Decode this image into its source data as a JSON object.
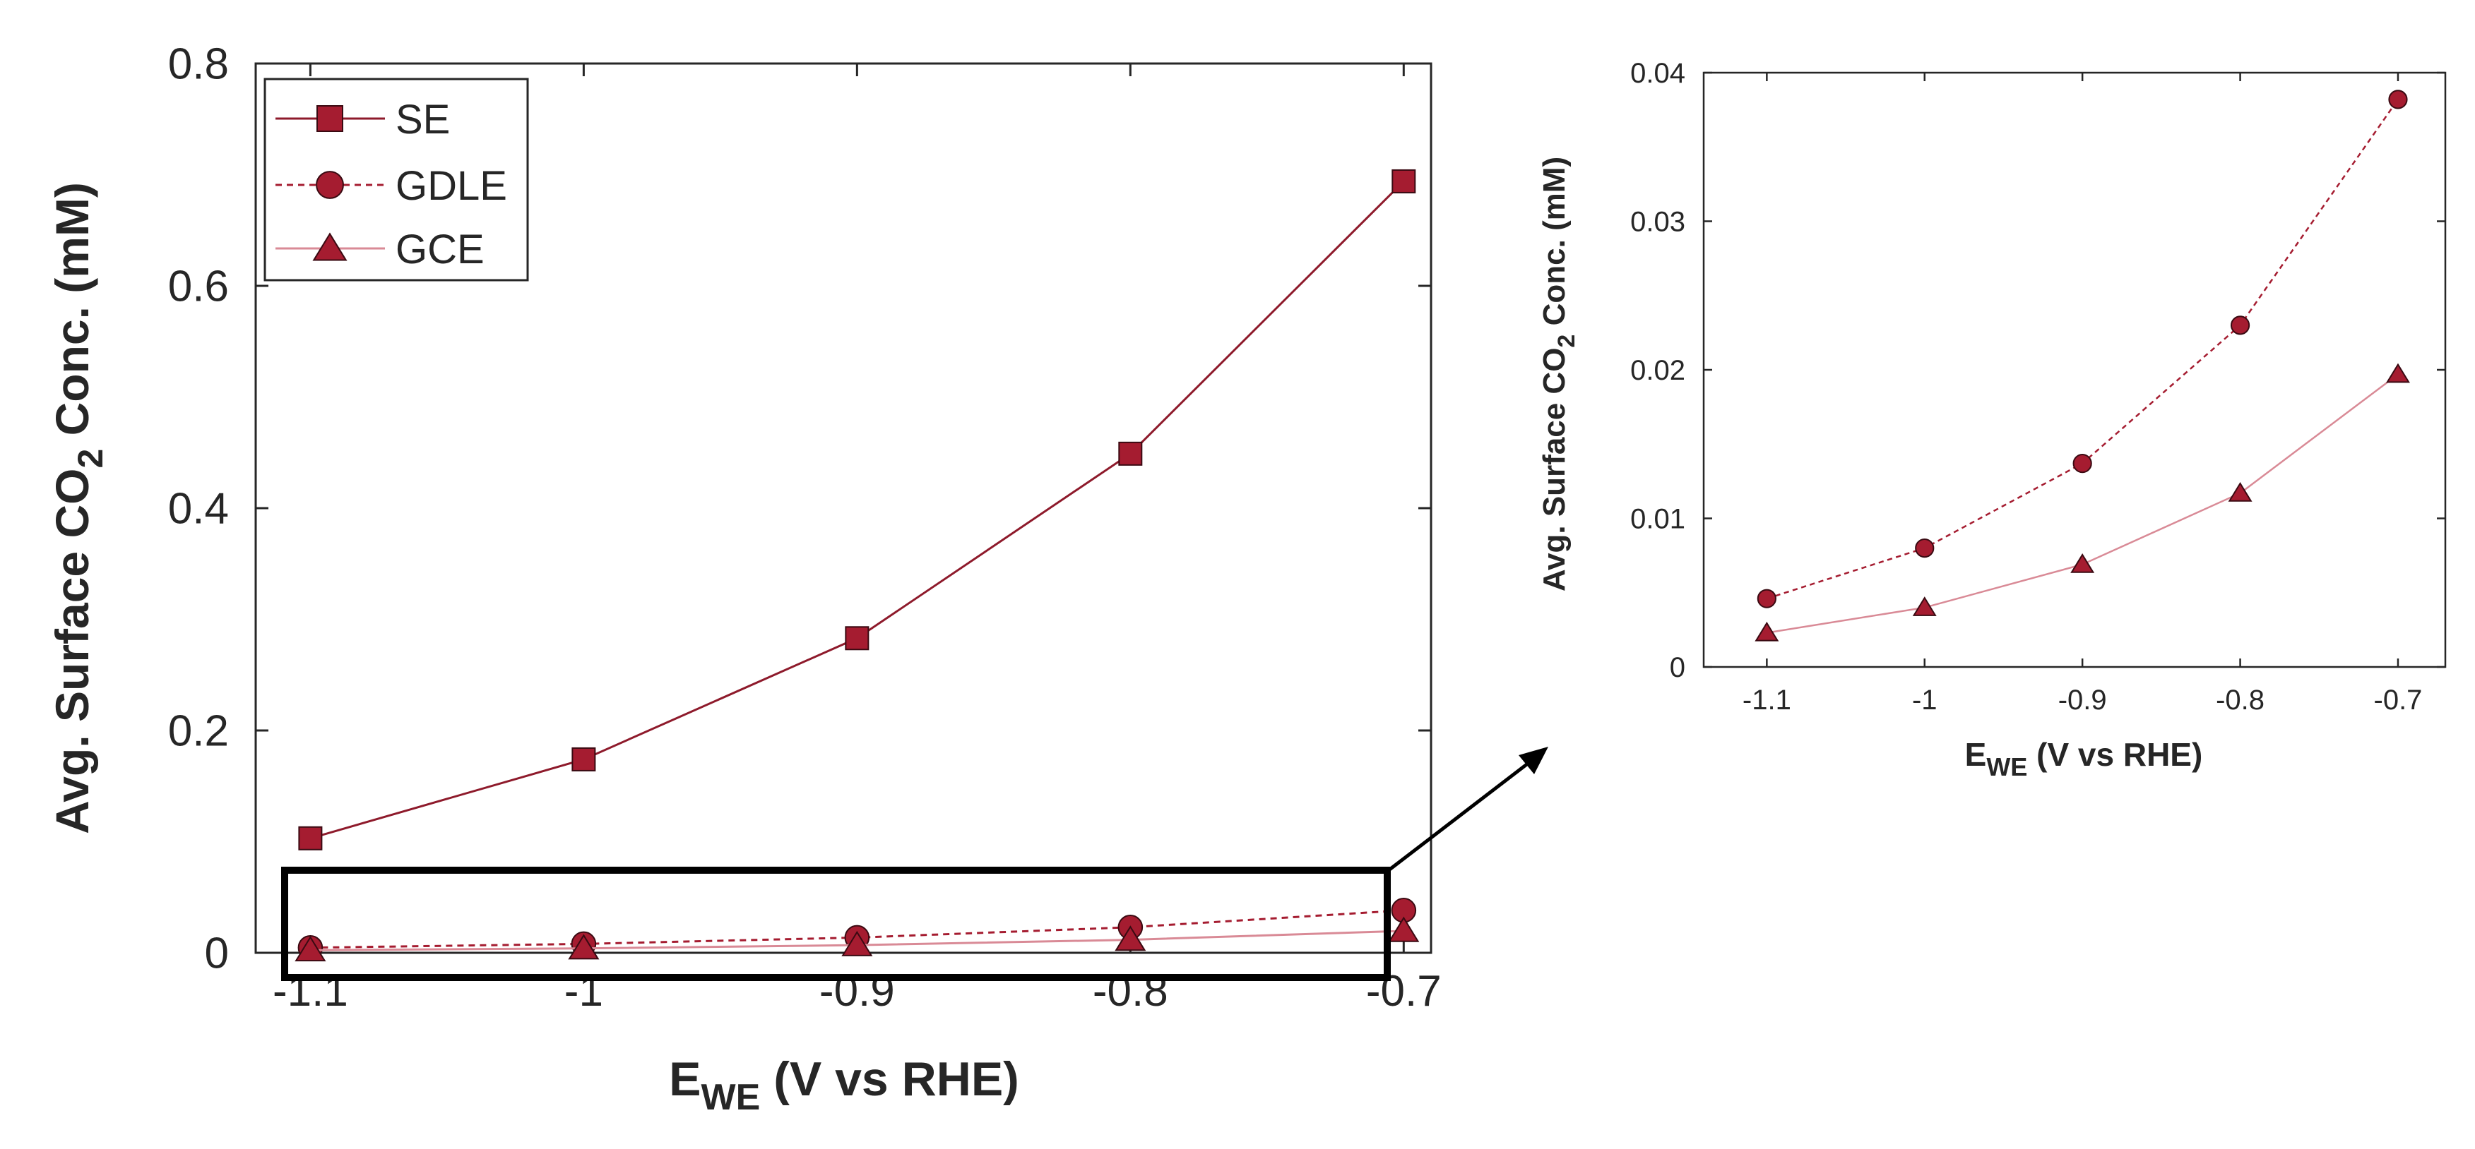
{
  "chart_data": [
    {
      "type": "line",
      "xlabel_main": "E",
      "xlabel_sub": "WE",
      "xlabel_rest": " (V vs RHE)",
      "ylabel_main": "Avg. Surface CO",
      "ylabel_sub": "2",
      "ylabel_rest": " Conc. (mM)",
      "x": [
        -1.1,
        -1.0,
        -0.9,
        -0.8,
        -0.7
      ],
      "xlim": [
        -1.12,
        -0.69
      ],
      "ylim": [
        0,
        0.8
      ],
      "xticks": [
        "-1.1",
        "-1",
        "-0.9",
        "-0.8",
        "-0.7"
      ],
      "yticks": [
        "0",
        "0.2",
        "0.4",
        "0.6",
        "0.8"
      ],
      "legend_position": "top-left",
      "series": [
        {
          "name": "SE",
          "marker": "square",
          "line": "solid",
          "values": [
            0.103,
            0.174,
            0.283,
            0.449,
            0.694
          ]
        },
        {
          "name": "GDLE",
          "marker": "circle",
          "line": "dashed",
          "values": [
            0.0046,
            0.008,
            0.0137,
            0.023,
            0.0382
          ]
        },
        {
          "name": "GCE",
          "marker": "triangle",
          "line": "dotted",
          "values": [
            0.0023,
            0.004,
            0.0069,
            0.0117,
            0.0197
          ]
        }
      ]
    },
    {
      "type": "line",
      "xlabel_main": "E",
      "xlabel_sub": "WE",
      "xlabel_rest": " (V vs RHE)",
      "ylabel_main": "Avg. Surface CO",
      "ylabel_sub": "2",
      "ylabel_rest": " Conc. (mM)",
      "x": [
        -1.1,
        -1.0,
        -0.9,
        -0.8,
        -0.7
      ],
      "xlim": [
        -1.14,
        -0.67
      ],
      "ylim": [
        0,
        0.04
      ],
      "xticks": [
        "-1.1",
        "-1",
        "-0.9",
        "-0.8",
        "-0.7"
      ],
      "yticks": [
        "0",
        "0.01",
        "0.02",
        "0.03",
        "0.04"
      ],
      "series": [
        {
          "name": "GDLE",
          "marker": "circle",
          "line": "dashed",
          "values": [
            0.0046,
            0.008,
            0.0137,
            0.023,
            0.0382
          ]
        },
        {
          "name": "GCE",
          "marker": "triangle",
          "line": "dotted",
          "values": [
            0.0023,
            0.004,
            0.0069,
            0.0117,
            0.0197
          ]
        }
      ]
    }
  ],
  "colors": {
    "marker_fill": "#a51c30",
    "se_line": "#8e1a2b",
    "gdle_line": "#a51c30",
    "gce_line": "#d98a96",
    "axis": "#262626"
  }
}
